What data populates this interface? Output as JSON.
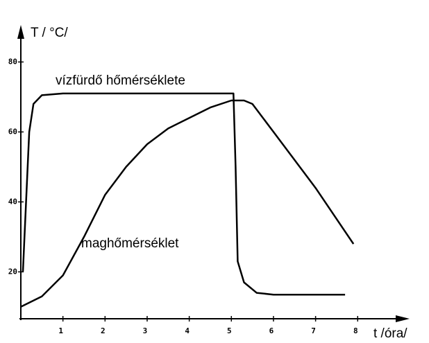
{
  "chart_data": {
    "type": "line",
    "y_label": "T / °C/",
    "x_label": "t /óra/",
    "annotations": [
      "vízfürdő hőmérséklete",
      "maghőmérséklet"
    ],
    "xlim": [
      0,
      9.1
    ],
    "ylim": [
      6.6,
      89
    ],
    "xticks": [
      1,
      2,
      3,
      4,
      5,
      6,
      7,
      8
    ],
    "yticks": [
      20,
      40,
      60,
      80
    ],
    "series": [
      {
        "color": "#000000",
        "x": [
          0.05,
          0.2,
          0.3,
          0.5,
          1,
          5.05,
          5.1,
          5.15,
          5.3,
          5.6,
          6,
          7.7
        ],
        "values": [
          20,
          60,
          68,
          70.5,
          71,
          71,
          50,
          23,
          17,
          14,
          13.5,
          13.5
        ]
      },
      {
        "color": "#000000",
        "x": [
          0,
          0.5,
          1,
          1.5,
          2,
          2.5,
          3,
          3.5,
          4,
          4.5,
          5,
          5.3,
          5.5,
          6,
          7,
          7.9
        ],
        "values": [
          10,
          13,
          19,
          30,
          42,
          50,
          56.5,
          61,
          64,
          67,
          69,
          69,
          68,
          60,
          44,
          28
        ]
      }
    ]
  }
}
